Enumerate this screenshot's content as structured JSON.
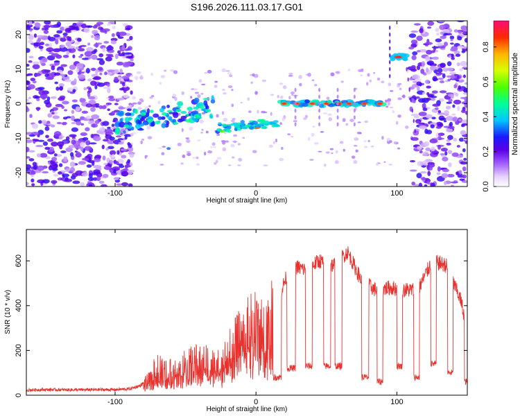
{
  "title": "S196.2026.111.03.17.G01",
  "chart_data": [
    {
      "type": "heatmap",
      "xlabel": "Height of straight line (km)",
      "ylabel": "Frequency (Hz)",
      "xlim": [
        -163,
        150
      ],
      "ylim": [
        -24,
        24
      ],
      "xticks": [
        -100,
        0,
        100
      ],
      "yticks": [
        20,
        10,
        0,
        -10,
        -20
      ],
      "xtick_labels": [
        "-100",
        "0",
        "100"
      ],
      "ytick_labels": [
        "20",
        "10",
        "0",
        "-10",
        "-20"
      ],
      "colorbar": {
        "label": "Normalized spectral amplitude",
        "range": [
          0,
          0.95
        ],
        "ticks": [
          0.0,
          0.2,
          0.4,
          0.6,
          0.8
        ],
        "tick_labels": [
          "0.0",
          "0.2",
          "0.4",
          "0.6",
          "0.8"
        ]
      },
      "features": [
        {
          "name": "noise-left",
          "x_range": [
            -163,
            -88
          ],
          "freq_range": [
            -24,
            24
          ],
          "amplitude": 0.15
        },
        {
          "name": "chirp-segment-1",
          "x_range": [
            -100,
            -30
          ],
          "freq_range": [
            -8,
            0
          ],
          "amplitude": 0.4
        },
        {
          "name": "segment-2",
          "x_range": [
            -28,
            16
          ],
          "freq_range": [
            -8,
            -5
          ],
          "amplitude": 0.55
        },
        {
          "name": "tone-zero",
          "x_range": [
            15,
            93
          ],
          "freq_center": 0,
          "amplitude": 0.95
        },
        {
          "name": "tone-high",
          "x_range": [
            96,
            108
          ],
          "freq_center": 13.5,
          "amplitude": 0.95
        },
        {
          "name": "noise-right",
          "x_range": [
            110,
            150
          ],
          "freq_range": [
            -24,
            24
          ],
          "amplitude": 0.15
        }
      ]
    },
    {
      "type": "line",
      "xlabel": "Height of straight line (km)",
      "ylabel": "SNR (10 * v/v)",
      "xlim": [
        -163,
        150
      ],
      "ylim": [
        0,
        740
      ],
      "xticks": [
        -100,
        0,
        100
      ],
      "yticks": [
        0,
        200,
        400,
        600
      ],
      "xtick_labels": [
        "-100",
        "0",
        "100"
      ],
      "ytick_labels": [
        "0",
        "200",
        "400",
        "600"
      ],
      "color": "#e8322e",
      "series": [
        {
          "name": "SNR",
          "x": [
            -163,
            -150,
            -130,
            -110,
            -100,
            -90,
            -82,
            -75,
            -70,
            -65,
            -55,
            -45,
            -35,
            -25,
            -15,
            -8,
            0,
            5,
            10,
            18,
            25,
            35,
            45,
            55,
            65,
            75,
            85,
            95,
            105,
            115,
            125,
            135,
            145,
            150
          ],
          "y": [
            20,
            22,
            21,
            22,
            22,
            25,
            40,
            80,
            150,
            110,
            130,
            160,
            170,
            150,
            250,
            300,
            350,
            300,
            350,
            470,
            580,
            560,
            600,
            580,
            640,
            510,
            470,
            480,
            470,
            470,
            600,
            580,
            430,
            300
          ]
        }
      ],
      "dropouts": [
        {
          "x": [
            12,
            18
          ],
          "y": 80
        },
        {
          "x": [
            22,
            28
          ],
          "y": 120
        },
        {
          "x": [
            35,
            40
          ],
          "y": 130
        },
        {
          "x": [
            48,
            53
          ],
          "y": 130
        },
        {
          "x": [
            56,
            61
          ],
          "y": 130
        },
        {
          "x": [
            75,
            80
          ],
          "y": 80
        },
        {
          "x": [
            86,
            90
          ],
          "y": 60
        },
        {
          "x": [
            100,
            104
          ],
          "y": 130
        },
        {
          "x": [
            112,
            116
          ],
          "y": 80
        },
        {
          "x": [
            124,
            128
          ],
          "y": 140
        },
        {
          "x": [
            136,
            140
          ],
          "y": 100
        },
        {
          "x": [
            148,
            150
          ],
          "y": 60
        }
      ]
    }
  ]
}
